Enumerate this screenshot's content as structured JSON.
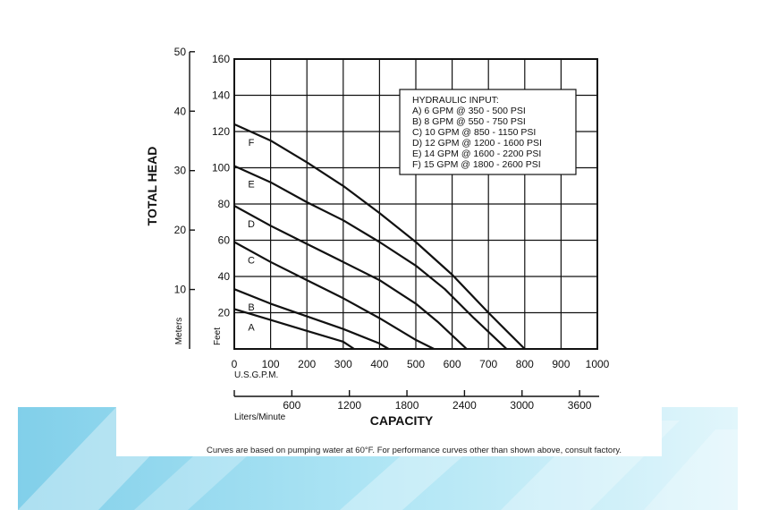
{
  "chart_data": {
    "type": "line",
    "title": "",
    "xlabel": "CAPACITY",
    "x_unit_primary": "U.S.G.P.M.",
    "x_unit_secondary": "Liters/Minute",
    "ylabel": "TOTAL HEAD",
    "y_unit_primary": "Feet",
    "y_unit_secondary": "Meters",
    "xlim": [
      0,
      1000
    ],
    "ylim": [
      0,
      160
    ],
    "x_ticks": [
      0,
      100,
      200,
      300,
      400,
      500,
      600,
      700,
      800,
      900,
      1000
    ],
    "y_ticks": [
      20,
      40,
      60,
      80,
      100,
      120,
      140,
      160
    ],
    "x_ticks_secondary": [
      600,
      1200,
      1800,
      2400,
      3000,
      3600
    ],
    "y_ticks_secondary": [
      10,
      20,
      30,
      40,
      50
    ],
    "grid": true,
    "legend_title": "HYDRAULIC INPUT:",
    "legend_position": "top-right",
    "series": [
      {
        "name": "A",
        "label": "A) 6 GPM @ 350 - 500 PSI",
        "points": [
          [
            0,
            22
          ],
          [
            100,
            16
          ],
          [
            200,
            10
          ],
          [
            300,
            4
          ],
          [
            330,
            0
          ]
        ]
      },
      {
        "name": "B",
        "label": "B) 8 GPM @ 550 - 750 PSI",
        "points": [
          [
            0,
            33
          ],
          [
            100,
            25
          ],
          [
            200,
            18
          ],
          [
            300,
            11
          ],
          [
            400,
            3
          ],
          [
            425,
            0
          ]
        ]
      },
      {
        "name": "C",
        "label": "C) 10 GPM @ 850 - 1150 PSI",
        "points": [
          [
            0,
            59
          ],
          [
            100,
            48
          ],
          [
            200,
            38
          ],
          [
            300,
            28
          ],
          [
            400,
            17
          ],
          [
            500,
            5
          ],
          [
            550,
            0
          ]
        ]
      },
      {
        "name": "D",
        "label": "D) 12 GPM @ 1200 - 1600 PSI",
        "points": [
          [
            0,
            79
          ],
          [
            100,
            68
          ],
          [
            200,
            58
          ],
          [
            300,
            48
          ],
          [
            400,
            38
          ],
          [
            500,
            25
          ],
          [
            560,
            15
          ],
          [
            640,
            0
          ]
        ]
      },
      {
        "name": "E",
        "label": "E) 14 GPM @ 1600 - 2200 PSI",
        "points": [
          [
            0,
            101
          ],
          [
            100,
            92
          ],
          [
            200,
            81
          ],
          [
            300,
            71
          ],
          [
            400,
            59
          ],
          [
            500,
            46
          ],
          [
            580,
            33
          ],
          [
            660,
            17
          ],
          [
            750,
            0
          ]
        ]
      },
      {
        "name": "F",
        "label": "F) 15 GPM @ 1800 - 2600 PSI",
        "points": [
          [
            0,
            124
          ],
          [
            100,
            115
          ],
          [
            200,
            103
          ],
          [
            300,
            90
          ],
          [
            400,
            75
          ],
          [
            500,
            59
          ],
          [
            600,
            41
          ],
          [
            700,
            20
          ],
          [
            750,
            10
          ],
          [
            800,
            0
          ]
        ]
      }
    ]
  },
  "footnote": "Curves are based on pumping water at 60°F. For performance curves other than shown above, consult factory."
}
